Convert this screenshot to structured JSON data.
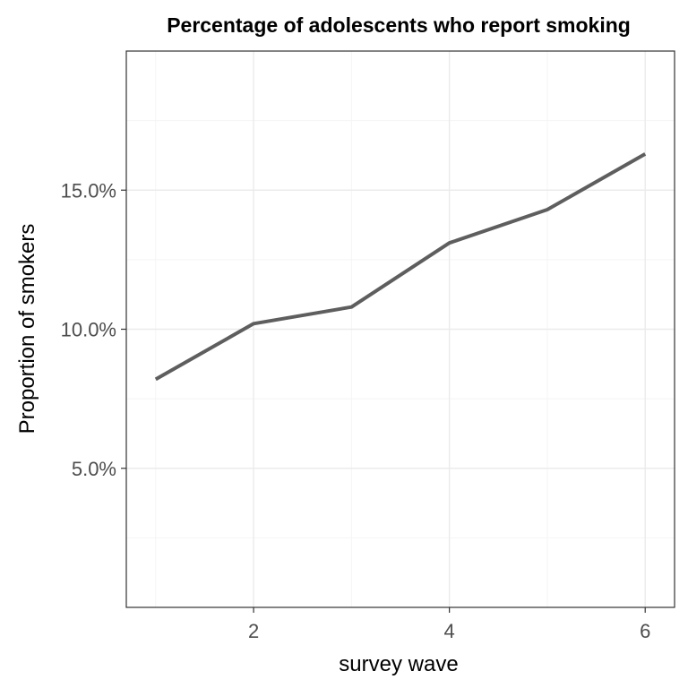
{
  "chart_data": {
    "type": "line",
    "title": "Percentage of adolescents who report smoking",
    "xlabel": "survey wave",
    "ylabel": "Proportion of smokers",
    "x": [
      1,
      2,
      3,
      4,
      5,
      6
    ],
    "values": [
      0.082,
      0.102,
      0.108,
      0.131,
      0.143,
      0.163
    ],
    "xlim": [
      0.7,
      6.3
    ],
    "ylim": [
      0,
      0.2
    ],
    "x_ticks": [
      2,
      4,
      6
    ],
    "x_tick_labels": [
      "2",
      "4",
      "6"
    ],
    "y_ticks": [
      0.05,
      0.1,
      0.15
    ],
    "y_tick_labels": [
      "5.0%",
      "10.0%",
      "15.0%"
    ],
    "grid": true,
    "line_color": "#5e5e5e"
  }
}
